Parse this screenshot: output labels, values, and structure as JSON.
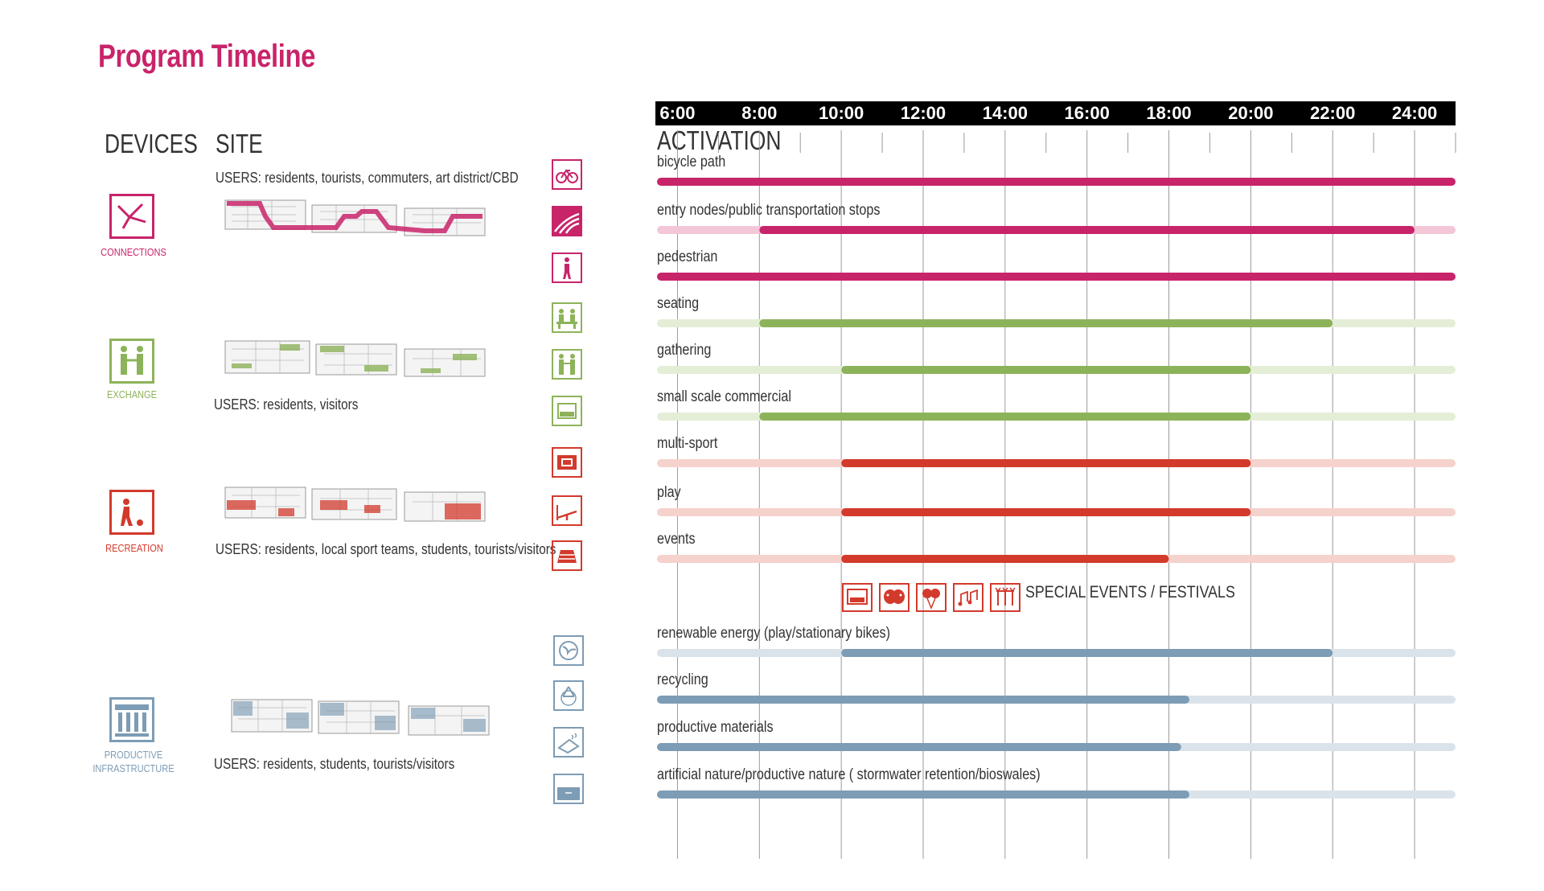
{
  "title": "Program Timeline",
  "columns": {
    "devices": "DEVICES",
    "site": "SITE",
    "activation": "ACTIVATION"
  },
  "colors": {
    "connections": "#c8246a",
    "exchange": "#8db35a",
    "recreation": "#d23a2c",
    "productive": "#7d9cb5"
  },
  "devices": [
    {
      "label": "CONNECTIONS",
      "icon": "connections-icon",
      "users": "USERS: residents, tourists, commuters, art district/CBD"
    },
    {
      "label": "EXCHANGE",
      "icon": "exchange-icon",
      "users": "USERS: residents, visitors"
    },
    {
      "label": "RECREATION",
      "icon": "recreation-icon",
      "users": "USERS: residents, local sport teams, students, tourists/visitors"
    },
    {
      "label_line1": "PRODUCTIVE",
      "label_line2": "INFRASTRUCTURE",
      "icon": "productive-infrastructure-icon",
      "users": "USERS: residents, students, tourists/visitors"
    }
  ],
  "side_icons": [
    "bicycle-icon",
    "transit-stop-icon",
    "pedestrian-icon",
    "seating-icon",
    "gathering-icon",
    "commercial-icon",
    "multi-sport-icon",
    "play-icon",
    "events-icon",
    "renewable-energy-icon",
    "recycling-icon",
    "productive-materials-icon",
    "artificial-nature-icon"
  ],
  "time_ticks": [
    "6:00",
    "8:00",
    "10:00",
    "12:00",
    "14:00",
    "16:00",
    "18:00",
    "20:00",
    "22:00",
    "24:00"
  ],
  "special_events": {
    "label": "SPECIAL EVENTS / FESTIVALS",
    "icons": [
      "screen-icon",
      "theatre-masks-icon",
      "balloons-icon",
      "music-notes-icon",
      "stalls-icon"
    ]
  },
  "chart_data": {
    "type": "gantt",
    "x_unit": "hour",
    "xlim": [
      5.5,
      25
    ],
    "rows": [
      {
        "label": "bicycle path",
        "group": "connections",
        "light": [
          5.5,
          25
        ],
        "active": [
          5.5,
          25
        ]
      },
      {
        "label": "entry nodes/public transportation stops",
        "group": "connections",
        "light": [
          5.5,
          25
        ],
        "active": [
          8,
          24
        ]
      },
      {
        "label": "pedestrian",
        "group": "connections",
        "light": [
          5.5,
          25
        ],
        "active": [
          5.5,
          25
        ]
      },
      {
        "label": "seating",
        "group": "exchange",
        "light": [
          5.5,
          25
        ],
        "active": [
          8,
          22
        ]
      },
      {
        "label": "gathering",
        "group": "exchange",
        "light": [
          5.5,
          25
        ],
        "active": [
          10,
          20
        ]
      },
      {
        "label": "small scale commercial",
        "group": "exchange",
        "light": [
          5.5,
          25
        ],
        "active": [
          8,
          20
        ]
      },
      {
        "label": "multi-sport",
        "group": "recreation",
        "light": [
          5.5,
          25
        ],
        "active": [
          10,
          20
        ]
      },
      {
        "label": "play",
        "group": "recreation",
        "light": [
          5.5,
          25
        ],
        "active": [
          10,
          20
        ]
      },
      {
        "label": "events",
        "group": "recreation",
        "light": [
          5.5,
          25
        ],
        "active": [
          10,
          18
        ]
      },
      {
        "label": "renewable energy (play/stationary bikes)",
        "group": "productive",
        "light": [
          5.5,
          25
        ],
        "active": [
          10,
          22
        ]
      },
      {
        "label": "recycling",
        "group": "productive",
        "light": [
          5.5,
          25
        ],
        "active": [
          5.5,
          18.5
        ]
      },
      {
        "label": "productive materials",
        "group": "productive",
        "light": [
          5.5,
          25
        ],
        "active": [
          5.5,
          18.3
        ]
      },
      {
        "label": "artificial nature/productive nature ( stormwater retention/bioswales)",
        "group": "productive",
        "light": [
          5.5,
          25
        ],
        "active": [
          5.5,
          18.5
        ]
      }
    ]
  }
}
